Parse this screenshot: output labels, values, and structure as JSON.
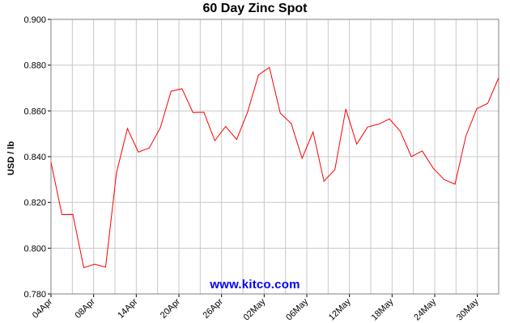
{
  "chart_data": {
    "type": "line",
    "title": "60 Day Zinc Spot",
    "ylabel": "USD / lb",
    "watermark": "www.kitco.com",
    "ylim": [
      0.78,
      0.9
    ],
    "yticks": [
      "0.780",
      "0.800",
      "0.820",
      "0.840",
      "0.860",
      "0.880",
      "0.900"
    ],
    "xlabels": [
      "04Apr",
      "08Apr",
      "14Apr",
      "20Apr",
      "26Apr",
      "02May",
      "06May",
      "12May",
      "18May",
      "24May",
      "30May"
    ],
    "x_label_positions": [
      0,
      2,
      4,
      6,
      8,
      10,
      12,
      14,
      16,
      18,
      20
    ],
    "x_span_units": 21,
    "grid": true,
    "series": [
      {
        "name": "",
        "color": "#ff0000",
        "values": [
          0.8375,
          0.8147,
          0.8148,
          0.7915,
          0.793,
          0.7917,
          0.833,
          0.8523,
          0.842,
          0.8438,
          0.8525,
          0.8686,
          0.8697,
          0.8593,
          0.8594,
          0.847,
          0.8532,
          0.8475,
          0.8594,
          0.8757,
          0.879,
          0.859,
          0.8545,
          0.8393,
          0.8508,
          0.8293,
          0.8343,
          0.8608,
          0.8455,
          0.853,
          0.8542,
          0.8565,
          0.851,
          0.84,
          0.8425,
          0.835,
          0.83,
          0.828,
          0.849,
          0.861,
          0.8633,
          0.8745
        ]
      }
    ]
  }
}
